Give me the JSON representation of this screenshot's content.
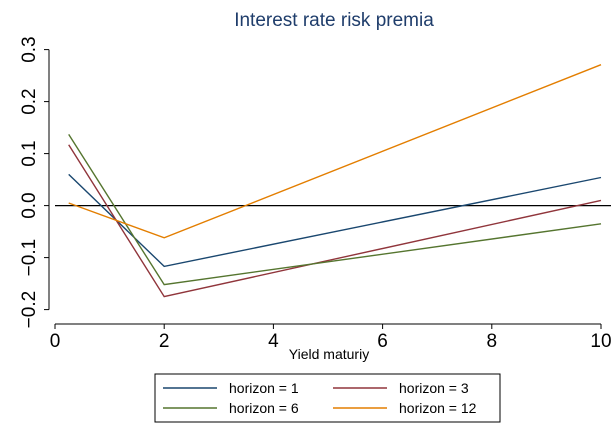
{
  "chart_data": {
    "type": "line",
    "title": "Interest rate risk premia",
    "xlabel": "Yield maturiy",
    "ylabel": "",
    "xlim": [
      0,
      10
    ],
    "ylim": [
      -0.22,
      0.33
    ],
    "x_ticks": [
      0,
      2,
      4,
      6,
      8,
      10
    ],
    "x_tick_labels": [
      "0",
      "2",
      "4",
      "6",
      "8",
      "10"
    ],
    "y_ticks": [
      -0.2,
      -0.1,
      0.0,
      0.1,
      0.2,
      0.3
    ],
    "y_tick_labels": [
      "−0.2",
      "−0.1",
      "0.0",
      "0.1",
      "0.2",
      "0.3"
    ],
    "reference_line_y": 0,
    "grid": false,
    "legend_position": "bottom",
    "series": [
      {
        "name": "horizon = 1",
        "color": "#1a476f",
        "x": [
          0.25,
          2,
          10
        ],
        "y": [
          0.06,
          -0.117,
          0.054
        ]
      },
      {
        "name": "horizon = 3",
        "color": "#90353b",
        "x": [
          0.25,
          2,
          10
        ],
        "y": [
          0.117,
          -0.175,
          0.01
        ]
      },
      {
        "name": "horizon = 6",
        "color": "#55752f",
        "x": [
          0.25,
          2,
          10
        ],
        "y": [
          0.137,
          -0.152,
          -0.035
        ]
      },
      {
        "name": "horizon = 12",
        "color": "#e37e00",
        "x": [
          0.25,
          2,
          10
        ],
        "y": [
          0.005,
          -0.062,
          0.271
        ]
      }
    ]
  }
}
